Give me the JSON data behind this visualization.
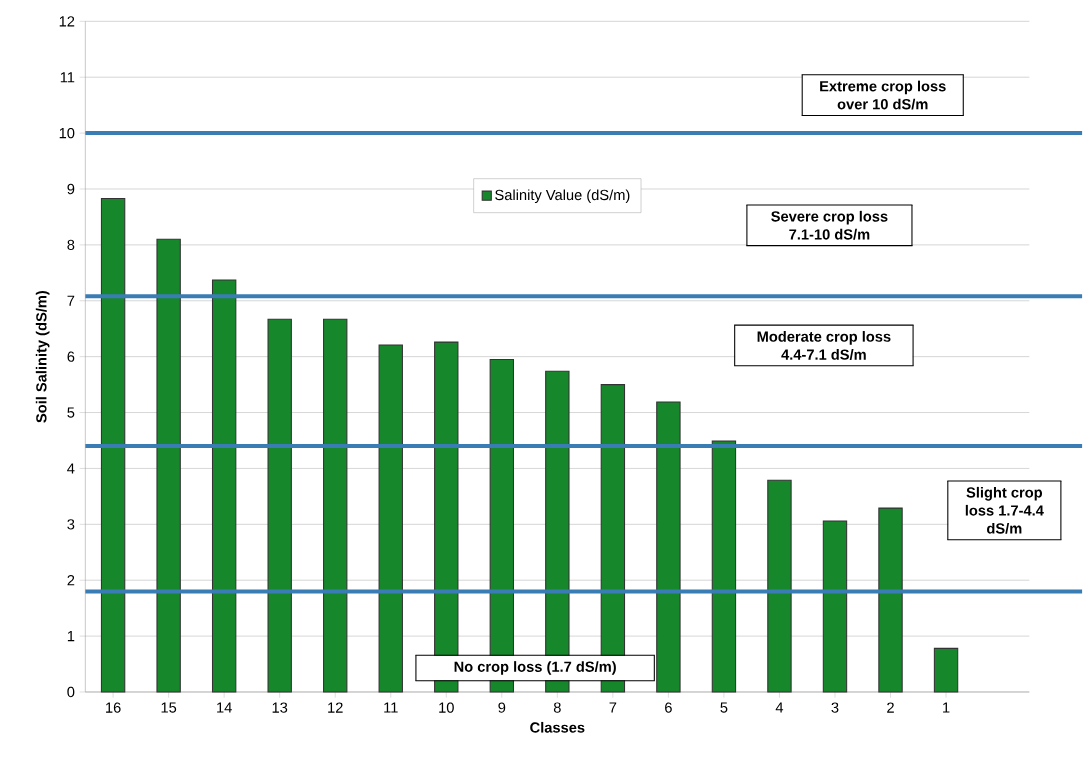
{
  "chart_data": {
    "type": "bar",
    "xlabel": "Classes",
    "ylabel": "Soil Salinity (dS/m)",
    "categories": [
      "16",
      "15",
      "14",
      "13",
      "12",
      "11",
      "10",
      "9",
      "8",
      "7",
      "6",
      "5",
      "4",
      "3",
      "2",
      "1"
    ],
    "series": [
      {
        "name": "Salinity Value (dS/m)",
        "color": "#17872c",
        "values": [
          8.83,
          8.1,
          7.37,
          6.67,
          6.67,
          6.21,
          6.26,
          5.95,
          5.74,
          5.5,
          5.19,
          4.49,
          3.79,
          3.06,
          3.29,
          0.78
        ]
      }
    ],
    "ylim": [
      0,
      12
    ],
    "yticks": [
      0,
      1,
      2,
      3,
      4,
      5,
      6,
      7,
      8,
      9,
      10,
      11,
      12
    ],
    "grid": "y",
    "legend": "top",
    "ref_lines": [
      {
        "axis": "y",
        "value": 10,
        "color": "#3a7db5"
      },
      {
        "axis": "y",
        "value": 7.08,
        "color": "#3a7db5"
      },
      {
        "axis": "y",
        "value": 4.4,
        "color": "#3a7db5"
      },
      {
        "axis": "y",
        "value": 1.8,
        "color": "#3a7db5"
      }
    ],
    "annotations": [
      "Extreme crop loss over 10 dS/m",
      "Severe crop loss 7.1-10 dS/m",
      "Moderate crop loss 4.4-7.1 dS/m",
      "Slight crop loss 1.7-4.4 dS/m",
      "No crop loss (1.7 dS/m)"
    ]
  }
}
